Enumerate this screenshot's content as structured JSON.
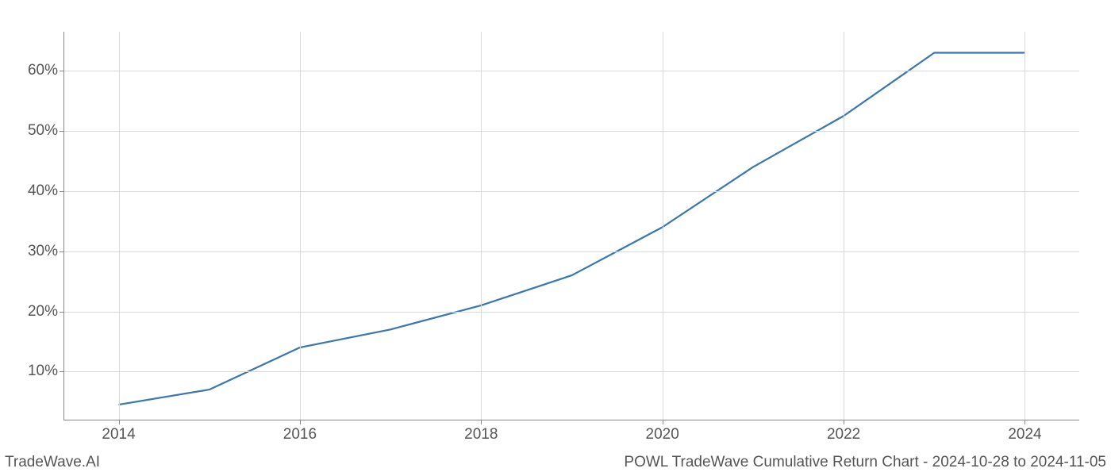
{
  "chart": {
    "type": "line",
    "x_years": [
      2014,
      2015,
      2016,
      2017,
      2018,
      2019,
      2020,
      2021,
      2022,
      2023,
      2024
    ],
    "y_values_pct": [
      4.5,
      7.0,
      14.0,
      17.0,
      21.0,
      26.0,
      34.0,
      44.0,
      52.5,
      63.0,
      63.0
    ],
    "line_color": "#3a76af",
    "line_width": 2.2,
    "xlim": [
      2013.4,
      2024.6
    ],
    "ylim": [
      2.0,
      66.5
    ],
    "x_ticks": [
      2014,
      2016,
      2018,
      2020,
      2022,
      2024
    ],
    "y_ticks": [
      10,
      20,
      30,
      40,
      50,
      60
    ],
    "y_tick_suffix": "%",
    "grid_color": "#d9d9d9",
    "axis_color": "#888888",
    "background_color": "#ffffff",
    "tick_label_fontsize": 19,
    "tick_label_color": "#555555"
  },
  "footer": {
    "left_text": "TradeWave.AI",
    "right_text": "POWL TradeWave Cumulative Return Chart - 2024-10-28 to 2024-11-05",
    "fontsize": 19,
    "color": "#555555"
  }
}
